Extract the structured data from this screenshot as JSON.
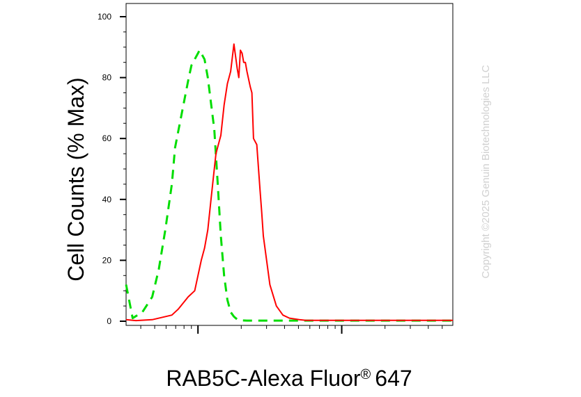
{
  "chart_data": {
    "type": "line",
    "title": "",
    "xlabel": "RAB5C-Alexa Fluor",
    "xlabel_mark": "®",
    "xlabel_suffix": "647",
    "ylabel": "Cell Counts (% Max)",
    "ylim": [
      0,
      100
    ],
    "y_ticks": [
      "0",
      "20",
      "40",
      "60",
      "80",
      "100"
    ],
    "x_scale": "log",
    "x_tick_labels": [],
    "grid": false,
    "legend": "none",
    "watermark": "Copyright ©2025 Genuin Biotechnologies LLC",
    "series": [
      {
        "color": "#00dd00",
        "style": "dashed",
        "x": [
          0.0,
          0.02,
          0.05,
          0.08,
          0.1,
          0.12,
          0.14,
          0.15,
          0.17,
          0.19,
          0.2,
          0.21,
          0.22,
          0.225,
          0.23,
          0.235,
          0.24,
          0.25,
          0.27,
          0.28,
          0.29,
          0.3,
          0.31,
          0.32,
          0.33,
          0.34,
          0.35,
          0.37,
          0.4,
          0.5,
          0.6,
          0.7,
          0.8,
          0.9,
          1.0
        ],
        "y": [
          12,
          1,
          3,
          8,
          17,
          30,
          45,
          57,
          68,
          79,
          84,
          86,
          88,
          89,
          88,
          87,
          86,
          80,
          63,
          46,
          28,
          15,
          7,
          3,
          1.5,
          0.6,
          0.3,
          0.2,
          0.2,
          0.2,
          0.2,
          0.2,
          0.2,
          0.2,
          0.2
        ]
      },
      {
        "color": "#ff0000",
        "style": "solid",
        "x": [
          0.0,
          0.03,
          0.08,
          0.14,
          0.16,
          0.19,
          0.21,
          0.22,
          0.23,
          0.24,
          0.25,
          0.26,
          0.27,
          0.275,
          0.28,
          0.29,
          0.3,
          0.31,
          0.32,
          0.33,
          0.34,
          0.345,
          0.35,
          0.355,
          0.36,
          0.365,
          0.37,
          0.38,
          0.385,
          0.39,
          0.4,
          0.41,
          0.415,
          0.42,
          0.43,
          0.44,
          0.46,
          0.48,
          0.5,
          0.53,
          0.55,
          0.6,
          0.7,
          0.8,
          0.9,
          1.0
        ],
        "y": [
          0.5,
          0.2,
          0.5,
          2,
          4,
          8,
          10,
          15,
          20,
          24,
          30,
          40,
          50,
          55,
          57,
          61,
          71,
          78,
          82,
          91,
          83,
          80,
          89,
          88,
          85,
          85,
          82,
          77,
          75,
          60,
          58,
          43,
          36,
          28,
          20,
          12,
          5,
          2,
          1,
          0.5,
          0.3,
          0.3,
          0.3,
          0.3,
          0.3,
          0.3
        ]
      }
    ]
  }
}
